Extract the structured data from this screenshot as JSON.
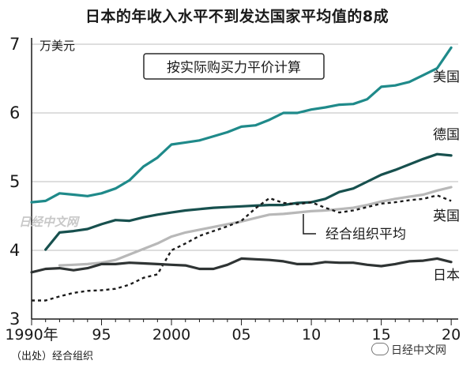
{
  "title": "日本的年收入水平不到发达国家平均值的8成",
  "source": "（出处）经合组织",
  "watermark": "日经中文网",
  "watermark_inner": "日经中文网",
  "colors": {
    "usa": "#1f8a8a",
    "germany": "#17504e",
    "uk": "#b8b8b8",
    "oecd": "#1a1a1a",
    "japan": "#2f3434"
  },
  "chart_data": {
    "type": "line",
    "title": "日本的年收入水平不到发达国家平均值的8成",
    "ylabel": "万美元",
    "annotation": "按实际购买力平价计算",
    "x_tick_labels": [
      "1990年",
      "95",
      "2000",
      "05",
      "10",
      "15",
      "20"
    ],
    "y_tick_labels": [
      "3",
      "4",
      "5",
      "6",
      "7"
    ],
    "xlim": [
      1990,
      2020.5
    ],
    "ylim": [
      3,
      7
    ],
    "x": [
      1990,
      1991,
      1992,
      1993,
      1994,
      1995,
      1996,
      1997,
      1998,
      1999,
      2000,
      2001,
      2002,
      2003,
      2004,
      2005,
      2006,
      2007,
      2008,
      2009,
      2010,
      2011,
      2012,
      2013,
      2014,
      2015,
      2016,
      2017,
      2018,
      2019,
      2020
    ],
    "series": [
      {
        "name": "美国",
        "key": "usa",
        "style": "solid",
        "values": [
          4.7,
          4.72,
          4.83,
          4.81,
          4.79,
          4.83,
          4.9,
          5.02,
          5.22,
          5.35,
          5.54,
          5.57,
          5.6,
          5.66,
          5.72,
          5.8,
          5.82,
          5.9,
          6.0,
          6.0,
          6.05,
          6.08,
          6.12,
          6.13,
          6.2,
          6.38,
          6.4,
          6.45,
          6.55,
          6.65,
          6.95
        ]
      },
      {
        "name": "德国",
        "key": "germany",
        "style": "solid",
        "values": [
          null,
          4.01,
          4.26,
          4.28,
          4.31,
          4.38,
          4.44,
          4.43,
          4.48,
          4.52,
          4.55,
          4.58,
          4.6,
          4.62,
          4.63,
          4.64,
          4.65,
          4.66,
          4.66,
          4.69,
          4.7,
          4.75,
          4.85,
          4.9,
          5.0,
          5.1,
          5.17,
          5.25,
          5.33,
          5.4,
          5.38
        ]
      },
      {
        "name": "英国",
        "key": "uk",
        "style": "solid",
        "values": [
          null,
          null,
          3.78,
          3.79,
          3.8,
          3.82,
          3.86,
          3.94,
          4.02,
          4.1,
          4.2,
          4.26,
          4.3,
          4.34,
          4.38,
          4.42,
          4.47,
          4.52,
          4.53,
          4.55,
          4.57,
          4.58,
          4.6,
          4.62,
          4.66,
          4.71,
          4.75,
          4.78,
          4.81,
          4.87,
          4.92
        ]
      },
      {
        "name": "经合组织平均",
        "key": "oecd",
        "style": "dotted",
        "values": [
          3.27,
          3.27,
          3.33,
          3.38,
          3.41,
          3.42,
          3.44,
          3.5,
          3.6,
          3.65,
          4.0,
          4.1,
          4.21,
          4.28,
          4.35,
          4.43,
          4.61,
          4.76,
          4.69,
          4.67,
          4.7,
          4.62,
          4.55,
          4.58,
          4.63,
          4.68,
          4.7,
          4.73,
          4.75,
          4.8,
          4.72
        ]
      },
      {
        "name": "日本",
        "key": "japan",
        "style": "solid",
        "values": [
          3.68,
          3.73,
          3.74,
          3.71,
          3.74,
          3.8,
          3.8,
          3.82,
          3.81,
          3.8,
          3.79,
          3.78,
          3.73,
          3.73,
          3.79,
          3.88,
          3.87,
          3.86,
          3.84,
          3.8,
          3.8,
          3.83,
          3.82,
          3.82,
          3.79,
          3.77,
          3.8,
          3.84,
          3.85,
          3.88,
          3.83
        ]
      }
    ]
  }
}
